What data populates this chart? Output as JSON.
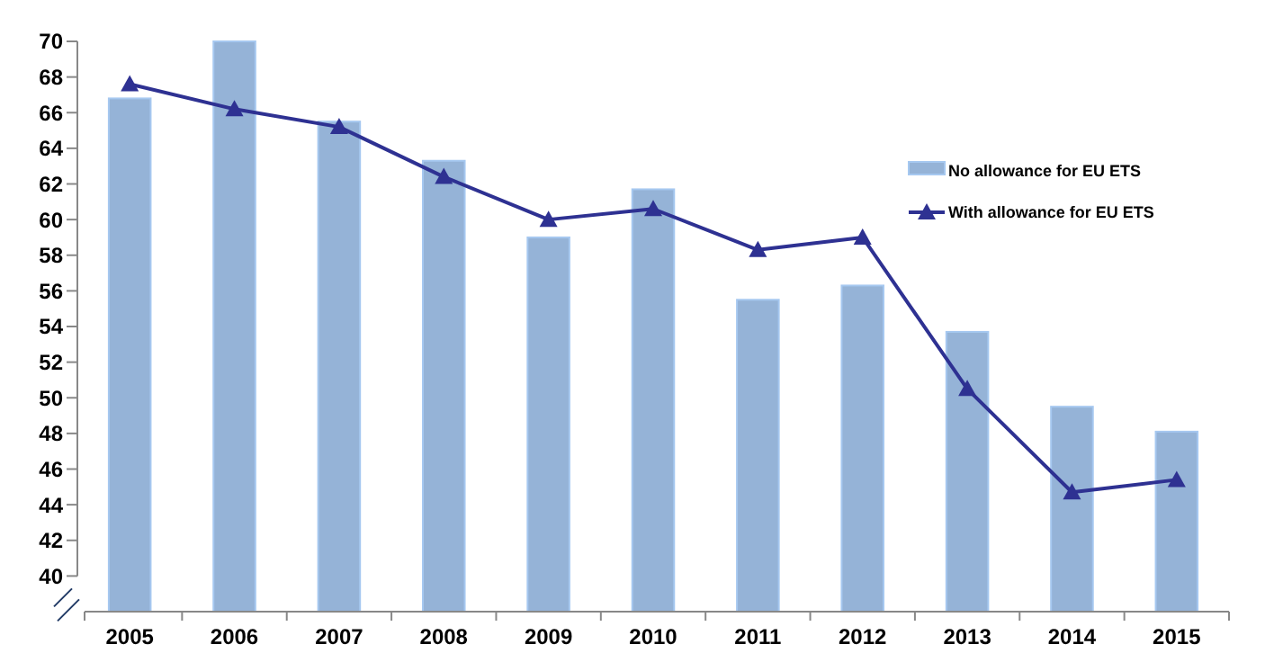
{
  "chart_data": {
    "type": "bar",
    "categories": [
      "2005",
      "2006",
      "2007",
      "2008",
      "2009",
      "2010",
      "2011",
      "2012",
      "2013",
      "2014",
      "2015"
    ],
    "series": [
      {
        "name": "No allowance for EU ETS",
        "color": "#95b3d7",
        "values": [
          66.8,
          70,
          65.5,
          63.3,
          59.0,
          61.7,
          55.5,
          56.3,
          53.7,
          49.5,
          48.1
        ]
      },
      {
        "name": "With allowance for EU ETS",
        "type": "line",
        "color": "#2e3192",
        "marker": "triangle",
        "values": [
          67.6,
          66.2,
          65.2,
          62.4,
          60.0,
          60.6,
          58.3,
          59.0,
          50.5,
          44.7,
          45.4
        ]
      }
    ],
    "ylim": [
      38,
      70
    ],
    "yticks": [
      40,
      42,
      44,
      46,
      48,
      50,
      52,
      54,
      56,
      58,
      60,
      62,
      64,
      66,
      68,
      70
    ],
    "grid": false,
    "legend": "top right"
  }
}
